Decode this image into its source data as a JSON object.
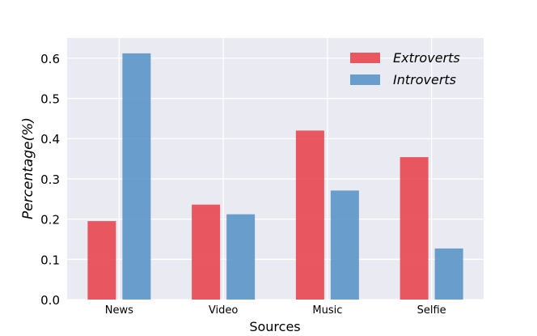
{
  "chart_data": {
    "type": "bar",
    "categories": [
      "News",
      "Video",
      "Music",
      "Selfie"
    ],
    "series": [
      {
        "name": "Extroverts",
        "values": [
          0.195,
          0.236,
          0.42,
          0.354
        ],
        "color": "#e8464f"
      },
      {
        "name": "Introverts",
        "values": [
          0.612,
          0.212,
          0.271,
          0.127
        ],
        "color": "#5b96c8"
      }
    ],
    "title": "",
    "xlabel": "Sources",
    "ylabel": "Percentage(%)",
    "ylim": [
      0,
      0.65
    ],
    "yticks": [
      0.0,
      0.1,
      0.2,
      0.3,
      0.4,
      0.5,
      0.6
    ],
    "ytick_labels": [
      "0.0",
      "0.1",
      "0.2",
      "0.3",
      "0.4",
      "0.5",
      "0.6"
    ],
    "grid": true,
    "legend_position": "top-right",
    "background_color": "#eaeaf2"
  }
}
